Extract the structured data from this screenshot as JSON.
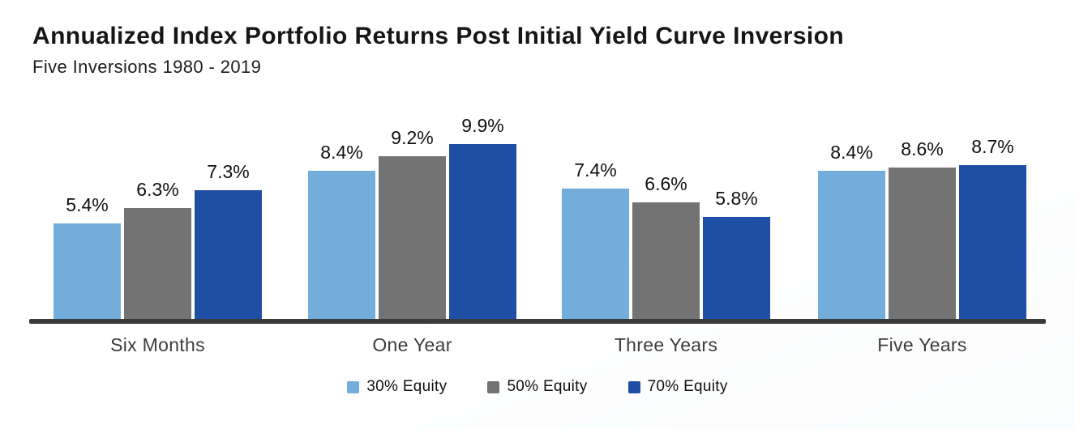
{
  "chart_data": {
    "type": "bar",
    "title": "Annualized Index Portfolio Returns Post Initial Yield Curve Inversion",
    "subtitle": "Five Inversions 1980 - 2019",
    "categories": [
      "Six Months",
      "One Year",
      "Three Years",
      "Five Years"
    ],
    "series": [
      {
        "name": "30% Equity",
        "color": "#73ADDC",
        "values": [
          5.4,
          8.4,
          7.4,
          8.4
        ]
      },
      {
        "name": "50% Equity",
        "color": "#737373",
        "values": [
          6.3,
          9.2,
          6.6,
          8.6
        ]
      },
      {
        "name": "70% Equity",
        "color": "#1F4EA5",
        "values": [
          7.3,
          9.9,
          5.8,
          8.7
        ]
      }
    ],
    "value_suffix": "%",
    "ylim": [
      0,
      11
    ],
    "grid": false,
    "y_axis_visible": false,
    "legend_position": "bottom",
    "axis_color": "#3A3A3A",
    "background": "#FFFFFF"
  }
}
